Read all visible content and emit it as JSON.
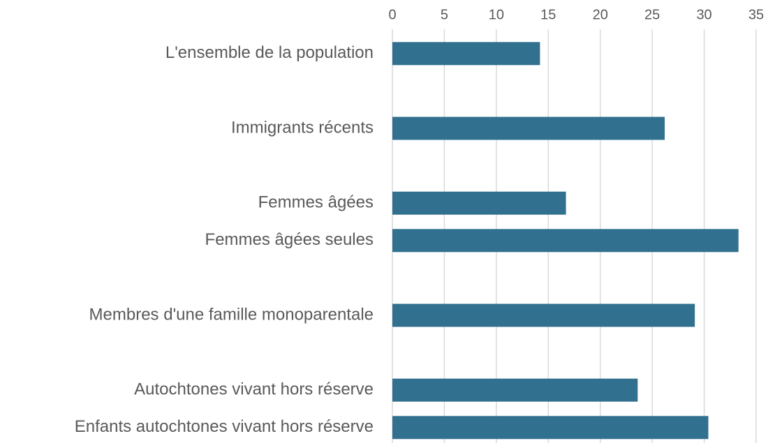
{
  "chart_data": {
    "type": "barh",
    "categories": [
      "L'ensemble de la population",
      null,
      "Immigrants récents",
      null,
      "Femmes âgées",
      "Femmes âgées seules",
      null,
      "Membres d'une famille monoparentale",
      null,
      "Autochtones vivant hors réserve",
      "Enfants autochtones vivant hors réserve"
    ],
    "values": [
      14.2,
      null,
      26.2,
      null,
      16.7,
      33.3,
      null,
      29.1,
      null,
      23.6,
      30.4
    ],
    "color": "#31708e",
    "xlim": [
      0,
      35
    ],
    "xticks": [
      0,
      5,
      10,
      15,
      20,
      25,
      30,
      35
    ],
    "grid": true
  }
}
